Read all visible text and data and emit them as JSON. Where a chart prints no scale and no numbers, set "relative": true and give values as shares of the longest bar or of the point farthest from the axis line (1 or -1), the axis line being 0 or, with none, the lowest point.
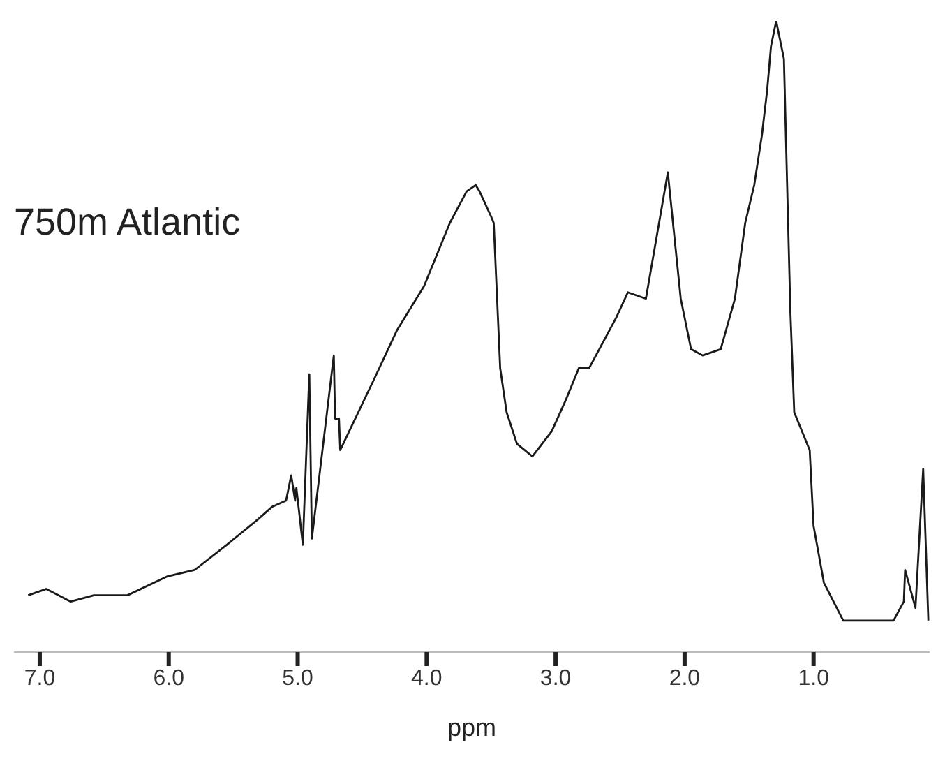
{
  "chart_data": {
    "type": "line",
    "relative": true,
    "xlabel": "ppm",
    "annotations": [
      "750m Atlantic"
    ],
    "xlim": [
      7.2,
      0.1
    ],
    "xticks": [
      {
        "value": 7,
        "label": "7.0"
      },
      {
        "value": 6,
        "label": "6.0"
      },
      {
        "value": 5,
        "label": "5.0"
      },
      {
        "value": 4,
        "label": "4.0"
      },
      {
        "value": 3,
        "label": "3.0"
      },
      {
        "value": 2,
        "label": "2.0"
      },
      {
        "value": 1,
        "label": "1.0"
      }
    ],
    "grid": false,
    "marker": "none",
    "line_style": "solid",
    "series": [
      {
        "color": "#1a1a1a",
        "x": [
          7.09,
          6.95,
          6.76,
          6.58,
          6.32,
          6.01,
          5.8,
          5.55,
          5.31,
          5.2,
          5.09,
          5.05,
          5.02,
          5.01,
          4.96,
          4.91,
          4.89,
          4.72,
          4.71,
          4.68,
          4.67,
          4.39,
          4.23,
          4.02,
          3.92,
          3.82,
          3.69,
          3.62,
          3.59,
          3.5,
          3.48,
          3.43,
          3.38,
          3.3,
          3.18,
          3.03,
          2.92,
          2.82,
          2.74,
          2.53,
          2.44,
          2.3,
          2.13,
          2.03,
          1.95,
          1.86,
          1.72,
          1.61,
          1.53,
          1.46,
          1.4,
          1.36,
          1.33,
          1.29,
          1.23,
          1.18,
          1.15,
          1.03,
          1,
          0.92,
          0.77,
          0.38,
          0.3,
          0.29,
          0.21,
          0.15,
          0.11
        ],
        "values": [
          0.09,
          0.1,
          0.08,
          0.09,
          0.09,
          0.12,
          0.13,
          0.17,
          0.21,
          0.23,
          0.24,
          0.28,
          0.24,
          0.26,
          0.17,
          0.44,
          0.18,
          0.47,
          0.37,
          0.37,
          0.32,
          0.44,
          0.51,
          0.58,
          0.63,
          0.68,
          0.73,
          0.74,
          0.73,
          0.69,
          0.68,
          0.45,
          0.38,
          0.33,
          0.31,
          0.35,
          0.4,
          0.45,
          0.45,
          0.53,
          0.57,
          0.56,
          0.76,
          0.56,
          0.48,
          0.47,
          0.48,
          0.56,
          0.68,
          0.74,
          0.82,
          0.89,
          0.96,
          1,
          0.94,
          0.54,
          0.38,
          0.32,
          0.2,
          0.11,
          0.05,
          0.05,
          0.08,
          0.13,
          0.07,
          0.29,
          0.05
        ]
      }
    ]
  }
}
